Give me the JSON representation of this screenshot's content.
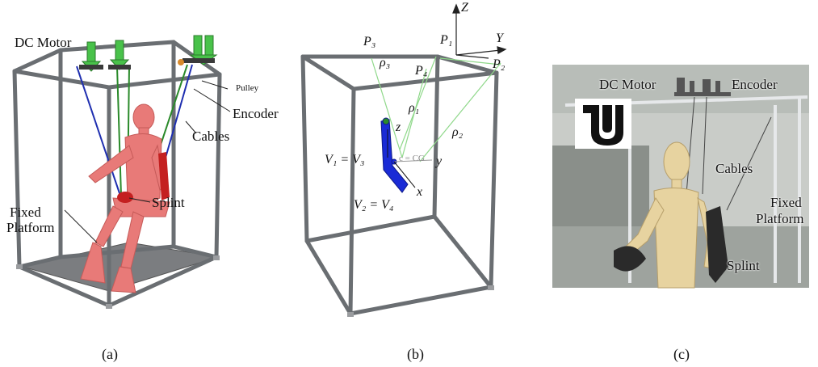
{
  "panel_a": {
    "labels": {
      "dc_motor": "DC Motor",
      "pulley": "Pulley",
      "encoder": "Encoder",
      "cables": "Cables",
      "splint": "Splint",
      "fixed_platform_line1": "Fixed",
      "fixed_platform_line2": "Platform"
    },
    "caption": "(a)"
  },
  "panel_b": {
    "labels": {
      "z_axis": "Z",
      "y_axis": "Y",
      "p1": "P₁",
      "p2": "P₂",
      "p3": "P₃",
      "p4": "P₄",
      "rho1": "ρ₁",
      "rho2": "ρ₂",
      "rho3": "ρ₃",
      "local_z": "z",
      "local_y": "y",
      "local_x": "x",
      "cg": "c = CG",
      "v1v3": "V₁ = V₃",
      "v2v4": "V₂ = V₄"
    },
    "caption": "(b)"
  },
  "panel_c": {
    "labels": {
      "dc_motor": "DC Motor",
      "encoder": "Encoder",
      "cables": "Cables",
      "fixed_platform_line1": "Fixed",
      "fixed_platform_line2": "Platform",
      "splint": "Splint"
    },
    "caption": "(c)"
  },
  "colors": {
    "frame": "#6a6e72",
    "motor": "#49c24a",
    "cable_blue": "#1f2fb0",
    "cable_green": "#2a8a2a",
    "mannequin": "#e87a78",
    "splint_red": "#c42020",
    "cable_light_green": "#8fd88a",
    "splint_blue": "#1a2bd6"
  }
}
